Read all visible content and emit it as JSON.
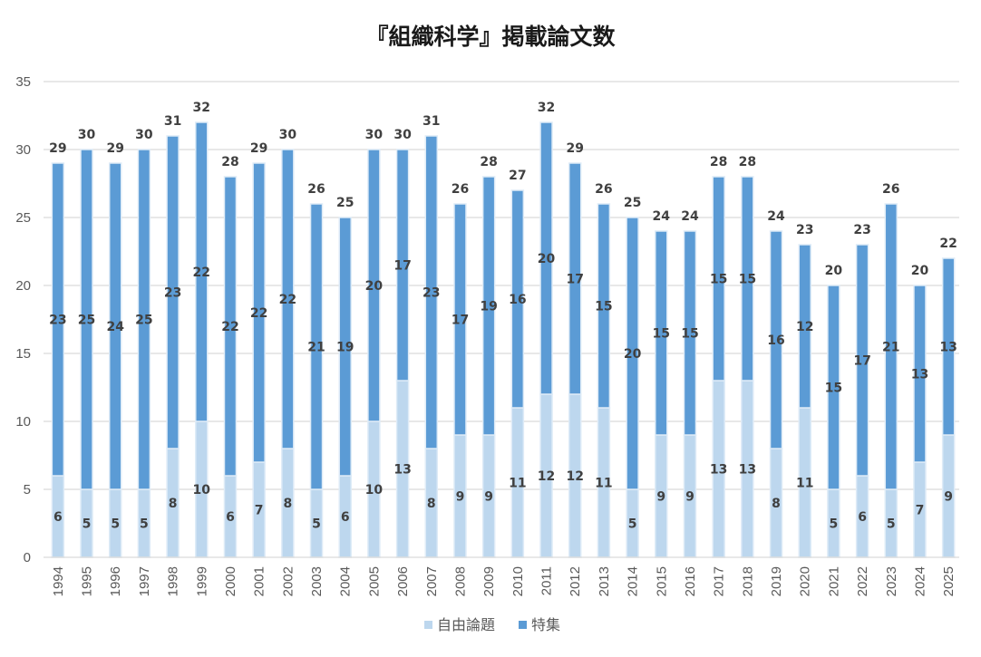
{
  "chart_data": {
    "type": "bar",
    "stacked": true,
    "title": "『組織科学』掲載論文数",
    "xlabel": "",
    "ylabel": "",
    "ylim": [
      0,
      35
    ],
    "yticks": [
      0,
      5,
      10,
      15,
      20,
      25,
      30,
      35
    ],
    "grid": true,
    "legend_position": "bottom",
    "categories": [
      "1994",
      "1995",
      "1996",
      "1997",
      "1998",
      "1999",
      "2000",
      "2001",
      "2002",
      "2003",
      "2004",
      "2005",
      "2006",
      "2007",
      "2008",
      "2009",
      "2010",
      "2011",
      "2012",
      "2013",
      "2014",
      "2015",
      "2016",
      "2017",
      "2018",
      "2019",
      "2020",
      "2021",
      "2022",
      "2023",
      "2024",
      "2025"
    ],
    "series": [
      {
        "name": "自由論題",
        "color": "#bdd7ee",
        "values": [
          6,
          5,
          5,
          5,
          8,
          10,
          6,
          7,
          8,
          5,
          6,
          10,
          13,
          8,
          9,
          9,
          11,
          12,
          12,
          11,
          5,
          9,
          9,
          13,
          13,
          8,
          11,
          5,
          6,
          5,
          7,
          9
        ]
      },
      {
        "name": "特集",
        "color": "#5b9bd5",
        "values": [
          23,
          25,
          24,
          25,
          23,
          22,
          22,
          22,
          22,
          21,
          19,
          20,
          17,
          23,
          17,
          19,
          16,
          20,
          17,
          15,
          20,
          15,
          15,
          15,
          15,
          16,
          12,
          15,
          17,
          21,
          13,
          13
        ]
      }
    ],
    "totals": [
      29,
      30,
      29,
      30,
      31,
      32,
      28,
      29,
      30,
      26,
      25,
      30,
      30,
      31,
      26,
      28,
      27,
      32,
      29,
      26,
      25,
      24,
      24,
      28,
      28,
      24,
      23,
      20,
      23,
      26,
      20,
      22
    ]
  }
}
